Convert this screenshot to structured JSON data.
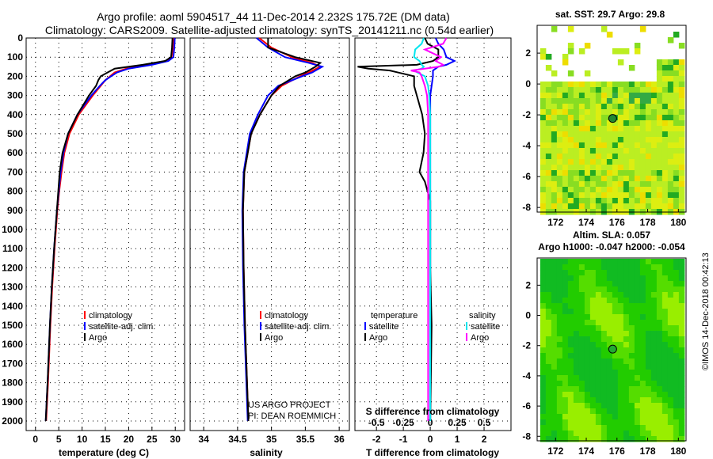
{
  "title_line1": "Argo profile: aoml 5904517_44 11-Dec-2014 2.232S 175.72E (DM data)",
  "title_line2": "Climatology: CARS2009. Satellite-adjusted climatology: synTS_20141211.nc (0.54d earlier)",
  "colors": {
    "climatology": "#ff0000",
    "satellite": "#0000ff",
    "argo": "#000000",
    "sal_satellite": "#00e5ee",
    "sal_argo": "#ff00ff"
  },
  "chart_data": [
    {
      "type": "line",
      "name": "temperature-profile",
      "xlabel": "temperature (deg C)",
      "ylabel": "depth",
      "xlim": [
        -2,
        32
      ],
      "ylim": [
        2050,
        0
      ],
      "xticks": [
        0,
        5,
        10,
        15,
        20,
        25,
        30
      ],
      "yticks": [
        0,
        100,
        200,
        300,
        400,
        500,
        600,
        700,
        800,
        900,
        1000,
        1100,
        1200,
        1300,
        1400,
        1500,
        1600,
        1700,
        1800,
        1900,
        2000
      ],
      "legend": [
        "climatology",
        "satellite-adj. clim.",
        "Argo"
      ],
      "depth": [
        0,
        50,
        100,
        120,
        140,
        160,
        180,
        200,
        220,
        250,
        300,
        400,
        500,
        600,
        700,
        800,
        900,
        1000,
        1100,
        1300,
        1500,
        1800,
        2000
      ],
      "series": [
        {
          "name": "climatology",
          "values": [
            29.6,
            29.5,
            29.2,
            28,
            24,
            19.5,
            17,
            16,
            15,
            14,
            12.3,
            9.3,
            7.3,
            6.2,
            5.6,
            5.1,
            4.7,
            4.4,
            4.1,
            3.6,
            3.2,
            2.7,
            2.3
          ]
        },
        {
          "name": "satellite-adj. clim.",
          "values": [
            29.9,
            29.8,
            29.6,
            28.5,
            25,
            20,
            17.5,
            16.2,
            15,
            13.8,
            12,
            9,
            7,
            6,
            5.4,
            5,
            4.6,
            4.3,
            4,
            3.5,
            3.1,
            2.6,
            2.2
          ]
        },
        {
          "name": "Argo",
          "values": [
            29.4,
            29.3,
            29.1,
            27.8,
            23,
            17,
            15.5,
            14,
            13.5,
            13,
            11.5,
            9,
            7,
            5.8,
            5.2,
            4.9,
            4.6,
            4.3,
            4.0,
            3.5,
            3.1,
            2.6,
            2.2
          ]
        }
      ]
    },
    {
      "type": "line",
      "name": "salinity-profile",
      "xlabel": "salinity",
      "xlim": [
        33.8,
        36.15
      ],
      "ylim": [
        2050,
        0
      ],
      "xticks": [
        34,
        34.5,
        35,
        35.5,
        36
      ],
      "legend": [
        "climatology",
        "satellite-adj. clim.",
        "Argo"
      ],
      "annotation": [
        "US ARGO PROJECT",
        "PI: DEAN ROEMMICH"
      ],
      "depth": [
        0,
        50,
        100,
        130,
        150,
        180,
        200,
        250,
        300,
        400,
        500,
        700,
        900,
        1200,
        1500,
        2000
      ],
      "series": [
        {
          "name": "climatology",
          "values": [
            34.82,
            35.0,
            35.3,
            35.6,
            35.72,
            35.55,
            35.42,
            35.15,
            35.0,
            34.83,
            34.7,
            34.6,
            34.58,
            34.59,
            34.61,
            34.66
          ]
        },
        {
          "name": "satellite-adj. clim.",
          "values": [
            34.78,
            34.95,
            35.2,
            35.55,
            35.75,
            35.6,
            35.45,
            35.1,
            34.95,
            34.8,
            34.68,
            34.59,
            34.57,
            34.58,
            34.6,
            34.65
          ]
        },
        {
          "name": "Argo",
          "values": [
            34.95,
            34.95,
            35.35,
            35.72,
            35.65,
            35.5,
            35.35,
            35.12,
            35.0,
            34.83,
            34.7,
            34.6,
            34.58,
            34.59,
            34.61,
            34.66
          ]
        }
      ]
    },
    {
      "type": "line",
      "name": "difference-profile",
      "xlabel": "T difference from climatology",
      "xlabel2": "S difference from climatology",
      "xlim": [
        -2.8,
        3.0
      ],
      "xticks": [
        -2,
        -1,
        0,
        1,
        2
      ],
      "xticks2": [
        -0.5,
        -0.25,
        0,
        0.25,
        0.5
      ],
      "xtick2_labels": [
        "-0.5",
        "-0.25",
        "0",
        "0.25",
        "0.5"
      ],
      "ylim": [
        2050,
        0
      ],
      "legend_temperature_title": "temperature",
      "legend_salinity_title": "salinity",
      "legend_labels": [
        "satellite",
        "Argo"
      ],
      "depth": [
        0,
        30,
        60,
        100,
        120,
        140,
        150,
        160,
        170,
        180,
        200,
        250,
        300,
        400,
        500,
        600,
        700,
        750,
        800,
        850,
        900,
        1200,
        1500,
        2000
      ],
      "series": [
        {
          "name": "T satellite",
          "values": [
            0.2,
            0.3,
            0.5,
            0.6,
            0.9,
            0.6,
            0.3,
            0.2,
            0.1,
            0.1,
            0.1,
            0.05,
            0,
            0,
            0,
            0,
            0,
            0,
            0,
            0,
            0,
            0,
            0,
            0
          ]
        },
        {
          "name": "T Argo",
          "values": [
            -0.2,
            -0.1,
            0.3,
            0.3,
            0.1,
            -0.5,
            -2.7,
            -2.3,
            -1.5,
            -1.2,
            -0.6,
            -0.6,
            -0.5,
            -0.3,
            -0.2,
            -0.25,
            -0.4,
            -0.2,
            -0.1,
            0,
            0,
            0,
            0.05,
            0
          ]
        },
        {
          "name": "S satellite",
          "values": [
            -0.06,
            -0.08,
            -0.14,
            -0.15,
            -0.1,
            -0.08,
            -0.06,
            -0.08,
            -0.15,
            -0.12,
            -0.05,
            -0.02,
            -0.01,
            0,
            0,
            0,
            0,
            0,
            0,
            0,
            0,
            0,
            0,
            0
          ]
        },
        {
          "name": "S Argo",
          "values": [
            0.15,
            0.12,
            -0.05,
            0.1,
            0.05,
            0.12,
            0.08,
            -0.05,
            -0.18,
            -0.1,
            -0.08,
            -0.05,
            -0.03,
            -0.02,
            -0.02,
            -0.02,
            -0.02,
            -0.02,
            -0.02,
            -0.02,
            -0.02,
            -0.02,
            -0.02,
            -0.02
          ]
        }
      ]
    },
    {
      "type": "heatmap",
      "name": "sst-map",
      "title": "sat. SST: 29.7 Argo: 29.8",
      "xticks": [
        172,
        174,
        176,
        178,
        180
      ],
      "yticks": [
        2,
        0,
        -2,
        -4,
        -6,
        -8
      ],
      "xlim": [
        170.8,
        180.5
      ],
      "ylim": [
        -8.3,
        3.8
      ],
      "marker": [
        175.72,
        -2.232
      ]
    },
    {
      "type": "heatmap",
      "name": "sla-map",
      "title": "Altim. SLA: 0.057",
      "subtitle": "Argo h1000: -0.047 h2000: -0.054",
      "xticks": [
        172,
        174,
        176,
        178,
        180
      ],
      "yticks": [
        2,
        0,
        -2,
        -4,
        -6,
        -8
      ],
      "xlim": [
        170.8,
        180.5
      ],
      "ylim": [
        -8.3,
        3.8
      ],
      "marker": [
        175.72,
        -2.232
      ]
    }
  ],
  "credit": "©IMOS 14-Dec-2018 00:42:13"
}
